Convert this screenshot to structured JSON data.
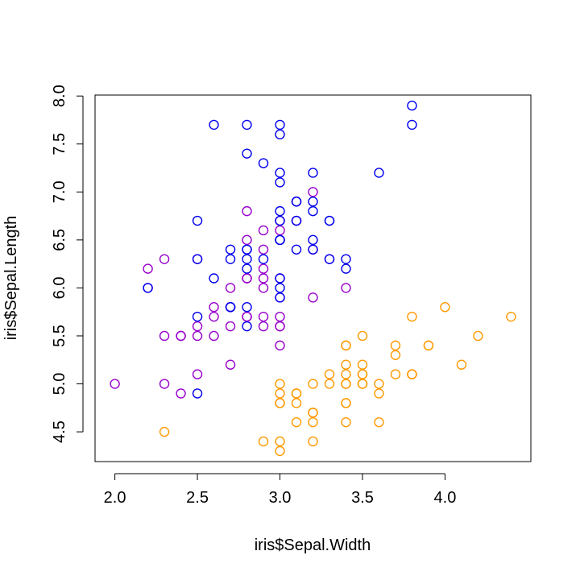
{
  "chart_data": {
    "type": "scatter",
    "xlabel": "iris$Sepal.Width",
    "ylabel": "iris$Sepal.Length",
    "xlim": [
      1.88,
      4.52
    ],
    "ylim": [
      4.19,
      8.01
    ],
    "x_ticks": [
      2.0,
      2.5,
      3.0,
      3.5,
      4.0
    ],
    "x_tick_labels": [
      "2.0",
      "2.5",
      "3.0",
      "3.5",
      "4.0"
    ],
    "y_ticks": [
      4.5,
      5.0,
      5.5,
      6.0,
      6.5,
      7.0,
      7.5,
      8.0
    ],
    "y_tick_labels": [
      "4.5",
      "5.0",
      "5.5",
      "6.0",
      "6.5",
      "7.0",
      "7.5",
      "8.0"
    ],
    "grid": false,
    "legend": "none",
    "marker": "open-circle",
    "series": [
      {
        "color": "#FF9900",
        "points": [
          [
            3.5,
            5.1
          ],
          [
            3.0,
            4.9
          ],
          [
            3.2,
            4.7
          ],
          [
            3.1,
            4.6
          ],
          [
            3.6,
            5.0
          ],
          [
            3.9,
            5.4
          ],
          [
            3.4,
            4.6
          ],
          [
            3.4,
            5.0
          ],
          [
            2.9,
            4.4
          ],
          [
            3.1,
            4.9
          ],
          [
            3.7,
            5.4
          ],
          [
            3.4,
            4.8
          ],
          [
            3.0,
            4.8
          ],
          [
            3.0,
            4.3
          ],
          [
            4.0,
            5.8
          ],
          [
            4.4,
            5.7
          ],
          [
            3.9,
            5.4
          ],
          [
            3.5,
            5.1
          ],
          [
            3.8,
            5.7
          ],
          [
            3.8,
            5.1
          ],
          [
            3.4,
            5.4
          ],
          [
            3.7,
            5.1
          ],
          [
            3.6,
            4.6
          ],
          [
            3.3,
            5.1
          ],
          [
            3.4,
            4.8
          ],
          [
            3.0,
            5.0
          ],
          [
            3.4,
            5.0
          ],
          [
            3.5,
            5.2
          ],
          [
            3.4,
            5.2
          ],
          [
            3.2,
            4.7
          ],
          [
            3.1,
            4.8
          ],
          [
            3.4,
            5.4
          ],
          [
            4.1,
            5.2
          ],
          [
            4.2,
            5.5
          ],
          [
            3.1,
            4.9
          ],
          [
            3.2,
            5.0
          ],
          [
            3.5,
            5.5
          ],
          [
            3.6,
            4.9
          ],
          [
            3.0,
            4.4
          ],
          [
            3.4,
            5.1
          ],
          [
            3.5,
            5.0
          ],
          [
            2.3,
            4.5
          ],
          [
            3.2,
            4.4
          ],
          [
            3.5,
            5.0
          ],
          [
            3.8,
            5.1
          ],
          [
            3.0,
            4.8
          ],
          [
            3.8,
            5.1
          ],
          [
            3.2,
            4.6
          ],
          [
            3.7,
            5.3
          ],
          [
            3.3,
            5.0
          ]
        ]
      },
      {
        "color": "#9900CC",
        "points": [
          [
            3.2,
            7.0
          ],
          [
            3.2,
            6.4
          ],
          [
            3.1,
            6.9
          ],
          [
            2.3,
            5.5
          ],
          [
            2.8,
            6.5
          ],
          [
            2.8,
            5.7
          ],
          [
            3.3,
            6.3
          ],
          [
            2.4,
            4.9
          ],
          [
            2.9,
            6.6
          ],
          [
            2.7,
            5.2
          ],
          [
            2.0,
            5.0
          ],
          [
            3.0,
            5.9
          ],
          [
            2.2,
            6.0
          ],
          [
            2.9,
            6.1
          ],
          [
            2.9,
            5.6
          ],
          [
            3.1,
            6.7
          ],
          [
            3.0,
            5.6
          ],
          [
            2.7,
            5.8
          ],
          [
            2.2,
            6.2
          ],
          [
            2.5,
            5.6
          ],
          [
            3.2,
            5.9
          ],
          [
            2.8,
            6.1
          ],
          [
            2.5,
            6.3
          ],
          [
            2.8,
            6.1
          ],
          [
            2.9,
            6.4
          ],
          [
            3.0,
            6.6
          ],
          [
            2.8,
            6.8
          ],
          [
            3.0,
            6.7
          ],
          [
            2.9,
            6.0
          ],
          [
            2.6,
            5.7
          ],
          [
            2.4,
            5.5
          ],
          [
            2.4,
            5.5
          ],
          [
            2.7,
            5.8
          ],
          [
            2.7,
            6.0
          ],
          [
            3.0,
            5.4
          ],
          [
            3.4,
            6.0
          ],
          [
            3.1,
            6.7
          ],
          [
            2.3,
            6.3
          ],
          [
            3.0,
            5.6
          ],
          [
            2.5,
            5.5
          ],
          [
            2.6,
            5.5
          ],
          [
            3.0,
            6.1
          ],
          [
            2.6,
            5.8
          ],
          [
            2.3,
            5.0
          ],
          [
            2.7,
            5.6
          ],
          [
            3.0,
            5.7
          ],
          [
            2.9,
            5.7
          ],
          [
            2.9,
            6.2
          ],
          [
            2.5,
            5.1
          ],
          [
            2.8,
            5.7
          ]
        ]
      },
      {
        "color": "#0000EE",
        "points": [
          [
            3.3,
            6.3
          ],
          [
            2.7,
            5.8
          ],
          [
            3.0,
            7.1
          ],
          [
            2.9,
            6.3
          ],
          [
            3.0,
            6.5
          ],
          [
            3.0,
            7.6
          ],
          [
            2.5,
            4.9
          ],
          [
            2.9,
            7.3
          ],
          [
            2.5,
            6.7
          ],
          [
            3.6,
            7.2
          ],
          [
            3.2,
            6.5
          ],
          [
            2.7,
            6.4
          ],
          [
            3.0,
            6.8
          ],
          [
            2.5,
            5.7
          ],
          [
            2.8,
            5.8
          ],
          [
            3.2,
            6.4
          ],
          [
            3.0,
            6.5
          ],
          [
            3.8,
            7.7
          ],
          [
            2.6,
            7.7
          ],
          [
            2.2,
            6.0
          ],
          [
            3.2,
            6.9
          ],
          [
            2.8,
            5.6
          ],
          [
            2.8,
            7.7
          ],
          [
            2.7,
            6.3
          ],
          [
            3.3,
            6.7
          ],
          [
            3.2,
            7.2
          ],
          [
            2.8,
            6.2
          ],
          [
            3.0,
            6.1
          ],
          [
            2.8,
            6.4
          ],
          [
            3.0,
            7.2
          ],
          [
            2.8,
            7.4
          ],
          [
            3.8,
            7.9
          ],
          [
            2.8,
            6.4
          ],
          [
            2.8,
            6.3
          ],
          [
            2.6,
            6.1
          ],
          [
            3.0,
            7.7
          ],
          [
            3.4,
            6.3
          ],
          [
            3.1,
            6.4
          ],
          [
            3.0,
            6.0
          ],
          [
            3.1,
            6.9
          ],
          [
            3.1,
            6.7
          ],
          [
            3.1,
            6.9
          ],
          [
            2.7,
            5.8
          ],
          [
            3.2,
            6.8
          ],
          [
            3.3,
            6.7
          ],
          [
            3.0,
            6.7
          ],
          [
            2.5,
            6.3
          ],
          [
            3.0,
            6.5
          ],
          [
            3.4,
            6.2
          ],
          [
            3.0,
            5.9
          ]
        ]
      }
    ]
  }
}
